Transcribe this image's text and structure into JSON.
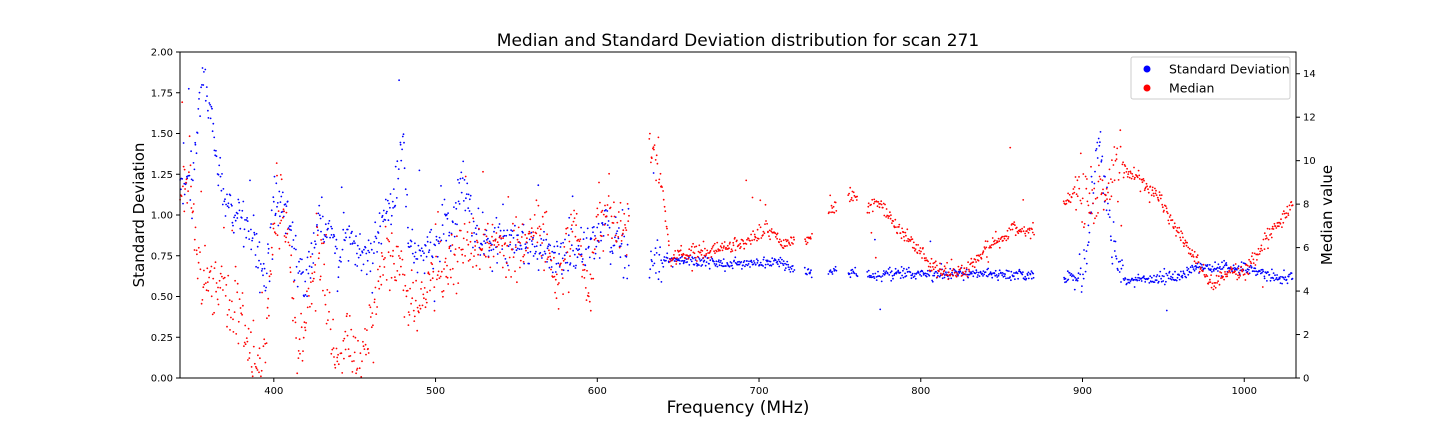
{
  "chart_data": {
    "type": "scatter",
    "title": "Median and Standard Deviation distribution for scan 271",
    "xlabel": "Frequency (MHz)",
    "ylabel_left": "Standard Deviation",
    "ylabel_right": "Median value",
    "xlim": [
      342,
      1032
    ],
    "ylim_left": [
      0,
      2.0
    ],
    "ylim_right": [
      0,
      15
    ],
    "x_ticks": [
      400,
      500,
      600,
      700,
      800,
      900,
      1000
    ],
    "y_left_ticks": [
      0.0,
      0.25,
      0.5,
      0.75,
      1.0,
      1.25,
      1.5,
      1.75,
      2.0
    ],
    "y_left_tick_labels": [
      "0.00",
      "0.25",
      "0.50",
      "0.75",
      "1.00",
      "1.25",
      "1.50",
      "1.75",
      "2.00"
    ],
    "y_right_ticks": [
      0,
      2,
      4,
      6,
      8,
      10,
      12,
      14
    ],
    "grid": false,
    "legend_position": "top-right",
    "series": [
      {
        "name": "Standard Deviation",
        "axis": "left",
        "color": "#0000ff",
        "trend": [
          [
            342,
            1.15
          ],
          [
            350,
            1.3
          ],
          [
            356,
            1.9
          ],
          [
            362,
            1.5
          ],
          [
            370,
            1.05
          ],
          [
            383,
            0.95
          ],
          [
            390,
            0.75
          ],
          [
            395,
            0.6
          ],
          [
            400,
            1.1
          ],
          [
            405,
            1.1
          ],
          [
            410,
            0.95
          ],
          [
            415,
            0.7
          ],
          [
            420,
            0.6
          ],
          [
            428,
            0.95
          ],
          [
            435,
            0.9
          ],
          [
            440,
            0.75
          ],
          [
            447,
            0.9
          ],
          [
            455,
            0.7
          ],
          [
            462,
            0.85
          ],
          [
            470,
            1.05
          ],
          [
            475,
            1.1
          ],
          [
            480,
            1.5
          ],
          [
            483,
            0.85
          ],
          [
            488,
            0.75
          ],
          [
            495,
            0.8
          ],
          [
            500,
            0.8
          ],
          [
            505,
            1.0
          ],
          [
            510,
            0.9
          ],
          [
            515,
            1.2
          ],
          [
            520,
            1.1
          ],
          [
            525,
            0.85
          ],
          [
            535,
            0.85
          ],
          [
            545,
            0.85
          ],
          [
            555,
            0.8
          ],
          [
            565,
            0.8
          ],
          [
            575,
            0.75
          ],
          [
            590,
            0.75
          ],
          [
            600,
            0.9
          ],
          [
            605,
            0.9
          ],
          [
            615,
            0.73
          ],
          [
            640,
            0.72
          ],
          [
            660,
            0.72
          ],
          [
            680,
            0.7
          ],
          [
            700,
            0.7
          ],
          [
            712,
            0.72
          ],
          [
            720,
            0.67
          ],
          [
            730,
            0.65
          ],
          [
            745,
            0.65
          ],
          [
            760,
            0.65
          ],
          [
            770,
            0.63
          ],
          [
            800,
            0.64
          ],
          [
            830,
            0.64
          ],
          [
            850,
            0.64
          ],
          [
            868,
            0.63
          ],
          [
            890,
            0.62
          ],
          [
            900,
            0.62
          ],
          [
            905,
            1.0
          ],
          [
            910,
            1.5
          ],
          [
            915,
            1.05
          ],
          [
            920,
            0.8
          ],
          [
            925,
            0.6
          ],
          [
            940,
            0.6
          ],
          [
            960,
            0.62
          ],
          [
            970,
            0.68
          ],
          [
            1000,
            0.67
          ],
          [
            1020,
            0.62
          ],
          [
            1030,
            0.62
          ]
        ]
      },
      {
        "name": "Median",
        "axis": "right",
        "color": "#ff0000",
        "trend": [
          [
            342,
            8.5
          ],
          [
            348,
            9.5
          ],
          [
            352,
            6
          ],
          [
            356,
            4.5
          ],
          [
            362,
            4.3
          ],
          [
            370,
            4
          ],
          [
            380,
            3
          ],
          [
            385,
            1
          ],
          [
            390,
            0.6
          ],
          [
            395,
            1.5
          ],
          [
            400,
            6.5
          ],
          [
            405,
            8
          ],
          [
            408,
            7
          ],
          [
            412,
            3
          ],
          [
            415,
            0.5
          ],
          [
            420,
            3
          ],
          [
            427,
            6
          ],
          [
            430,
            5
          ],
          [
            435,
            2
          ],
          [
            440,
            0.5
          ],
          [
            445,
            2
          ],
          [
            450,
            0.8
          ],
          [
            455,
            1.2
          ],
          [
            460,
            2.5
          ],
          [
            465,
            4.5
          ],
          [
            470,
            6
          ],
          [
            475,
            5.5
          ],
          [
            480,
            4.5
          ],
          [
            485,
            2.8
          ],
          [
            490,
            3
          ],
          [
            495,
            4.5
          ],
          [
            500,
            5
          ],
          [
            510,
            5.5
          ],
          [
            520,
            6
          ],
          [
            530,
            6.3
          ],
          [
            540,
            6.2
          ],
          [
            545,
            5.5
          ],
          [
            555,
            6.5
          ],
          [
            565,
            7
          ],
          [
            575,
            4
          ],
          [
            585,
            7.5
          ],
          [
            590,
            6
          ],
          [
            595,
            3.5
          ],
          [
            600,
            7.5
          ],
          [
            610,
            7
          ],
          [
            617,
            6.5
          ],
          [
            635,
            11
          ],
          [
            640,
            9
          ],
          [
            645,
            5.5
          ],
          [
            660,
            5.8
          ],
          [
            680,
            6
          ],
          [
            695,
            6.3
          ],
          [
            705,
            6.8
          ],
          [
            715,
            6.2
          ],
          [
            730,
            6.3
          ],
          [
            745,
            7.8
          ],
          [
            757,
            8.5
          ],
          [
            765,
            8
          ],
          [
            775,
            8
          ],
          [
            790,
            6.5
          ],
          [
            800,
            5.8
          ],
          [
            810,
            5.0
          ],
          [
            820,
            4.8
          ],
          [
            830,
            5.0
          ],
          [
            840,
            6
          ],
          [
            850,
            6.5
          ],
          [
            860,
            6.8
          ],
          [
            868,
            6.8
          ],
          [
            895,
            8.5
          ],
          [
            905,
            8.2
          ],
          [
            915,
            9
          ],
          [
            930,
            9.5
          ],
          [
            950,
            8
          ],
          [
            960,
            6.5
          ],
          [
            970,
            5.5
          ],
          [
            980,
            4.3
          ],
          [
            990,
            4.8
          ],
          [
            1000,
            4.9
          ],
          [
            1010,
            6
          ],
          [
            1020,
            7
          ],
          [
            1030,
            8
          ]
        ]
      }
    ]
  }
}
